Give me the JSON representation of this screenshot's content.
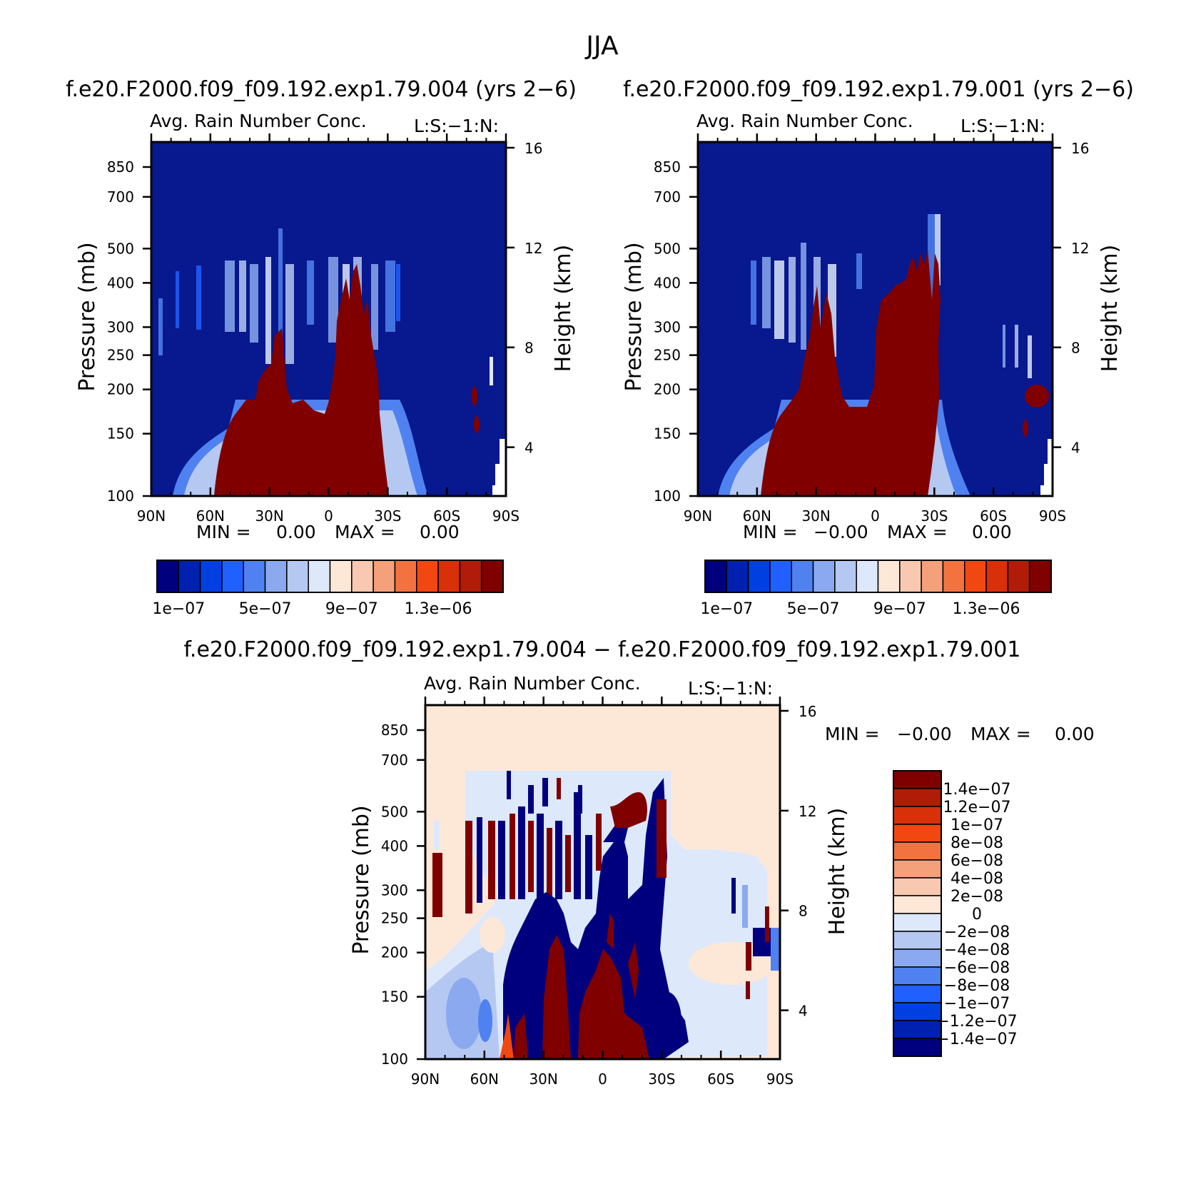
{
  "title": "JJA",
  "colors": {
    "seq_levels": [
      "#00007f",
      "#0020b0",
      "#0040e0",
      "#2060ff",
      "#4f82f0",
      "#8aa9ef",
      "#b4c8f2",
      "#dde8fb",
      "#fde8d8",
      "#f8c8b0",
      "#f4a07a",
      "#f37340",
      "#f04810",
      "#d83008",
      "#b01c08",
      "#800000"
    ],
    "diff_levels": [
      "#00007f",
      "#0020b0",
      "#0040e0",
      "#2060ff",
      "#4f82f0",
      "#8aa9ef",
      "#b4c8f2",
      "#dde8fb",
      "#fde8d8",
      "#f8c8b0",
      "#f4a07a",
      "#f37340",
      "#f04810",
      "#d83008",
      "#b01c08",
      "#800000"
    ]
  },
  "chart_data": [
    {
      "type": "heatmap",
      "panel": "top-left",
      "case_title": "f.e20.F2000.f09_f09.192.exp1.79.004 (yrs 2−6)",
      "title": "Avg. Rain Number Conc.",
      "corner_label": "L:S:−1:N:",
      "xlabel": "",
      "ylabel": "Pressure (mb)",
      "y2label": "Height (km)",
      "x_ticks": [
        "90N",
        "60N",
        "30N",
        "0",
        "30S",
        "60S",
        "90S"
      ],
      "y_ticks": [
        "100",
        "150",
        "200",
        "250",
        "300",
        "400",
        "500",
        "700",
        "850"
      ],
      "y2_ticks": [
        "16",
        "12",
        "8",
        "4"
      ],
      "xlim": [
        90,
        -90
      ],
      "ylim": [
        1000,
        100
      ],
      "y_scale": "log",
      "min_label": "MIN =",
      "min_value": "0.00",
      "max_label": "MAX =",
      "max_value": "0.00",
      "colorbar_labels": [
        "1e−07",
        "5e−07",
        "9e−07",
        "1.3e−06"
      ]
    },
    {
      "type": "heatmap",
      "panel": "top-right",
      "case_title": "f.e20.F2000.f09_f09.192.exp1.79.001 (yrs 2−6)",
      "title": "Avg. Rain Number Conc.",
      "corner_label": "L:S:−1:N:",
      "xlabel": "",
      "ylabel": "Pressure (mb)",
      "y2label": "Height (km)",
      "x_ticks": [
        "90N",
        "60N",
        "30N",
        "0",
        "30S",
        "60S",
        "90S"
      ],
      "y_ticks": [
        "100",
        "150",
        "200",
        "250",
        "300",
        "400",
        "500",
        "700",
        "850"
      ],
      "y2_ticks": [
        "16",
        "12",
        "8",
        "4"
      ],
      "xlim": [
        90,
        -90
      ],
      "ylim": [
        1000,
        100
      ],
      "y_scale": "log",
      "min_label": "MIN =",
      "min_value": "−0.00",
      "max_label": "MAX =",
      "max_value": "0.00",
      "colorbar_labels": [
        "1e−07",
        "5e−07",
        "9e−07",
        "1.3e−06"
      ]
    },
    {
      "type": "heatmap",
      "panel": "bottom",
      "case_title": "f.e20.F2000.f09_f09.192.exp1.79.004 − f.e20.F2000.f09_f09.192.exp1.79.001",
      "title": "Avg. Rain Number Conc.",
      "corner_label": "L:S:−1:N:",
      "xlabel": "",
      "ylabel": "Pressure (mb)",
      "y2label": "Height (km)",
      "x_ticks": [
        "90N",
        "60N",
        "30N",
        "0",
        "30S",
        "60S",
        "90S"
      ],
      "y_ticks": [
        "100",
        "150",
        "200",
        "250",
        "300",
        "400",
        "500",
        "700",
        "850"
      ],
      "y2_ticks": [
        "16",
        "12",
        "8",
        "4"
      ],
      "xlim": [
        90,
        -90
      ],
      "ylim": [
        1000,
        100
      ],
      "y_scale": "log",
      "min_label": "MIN =",
      "min_value": "−0.00",
      "max_label": "MAX =",
      "max_value": "0.00",
      "colorbar_labels": [
        "1.4e−07",
        "1.2e−07",
        "1e−07",
        "8e−08",
        "6e−08",
        "4e−08",
        "2e−08",
        "0",
        "−2e−08",
        "−4e−08",
        "−6e−08",
        "−8e−08",
        "−1e−07",
        "−1.2e−07",
        "−1.4e−07"
      ]
    }
  ]
}
